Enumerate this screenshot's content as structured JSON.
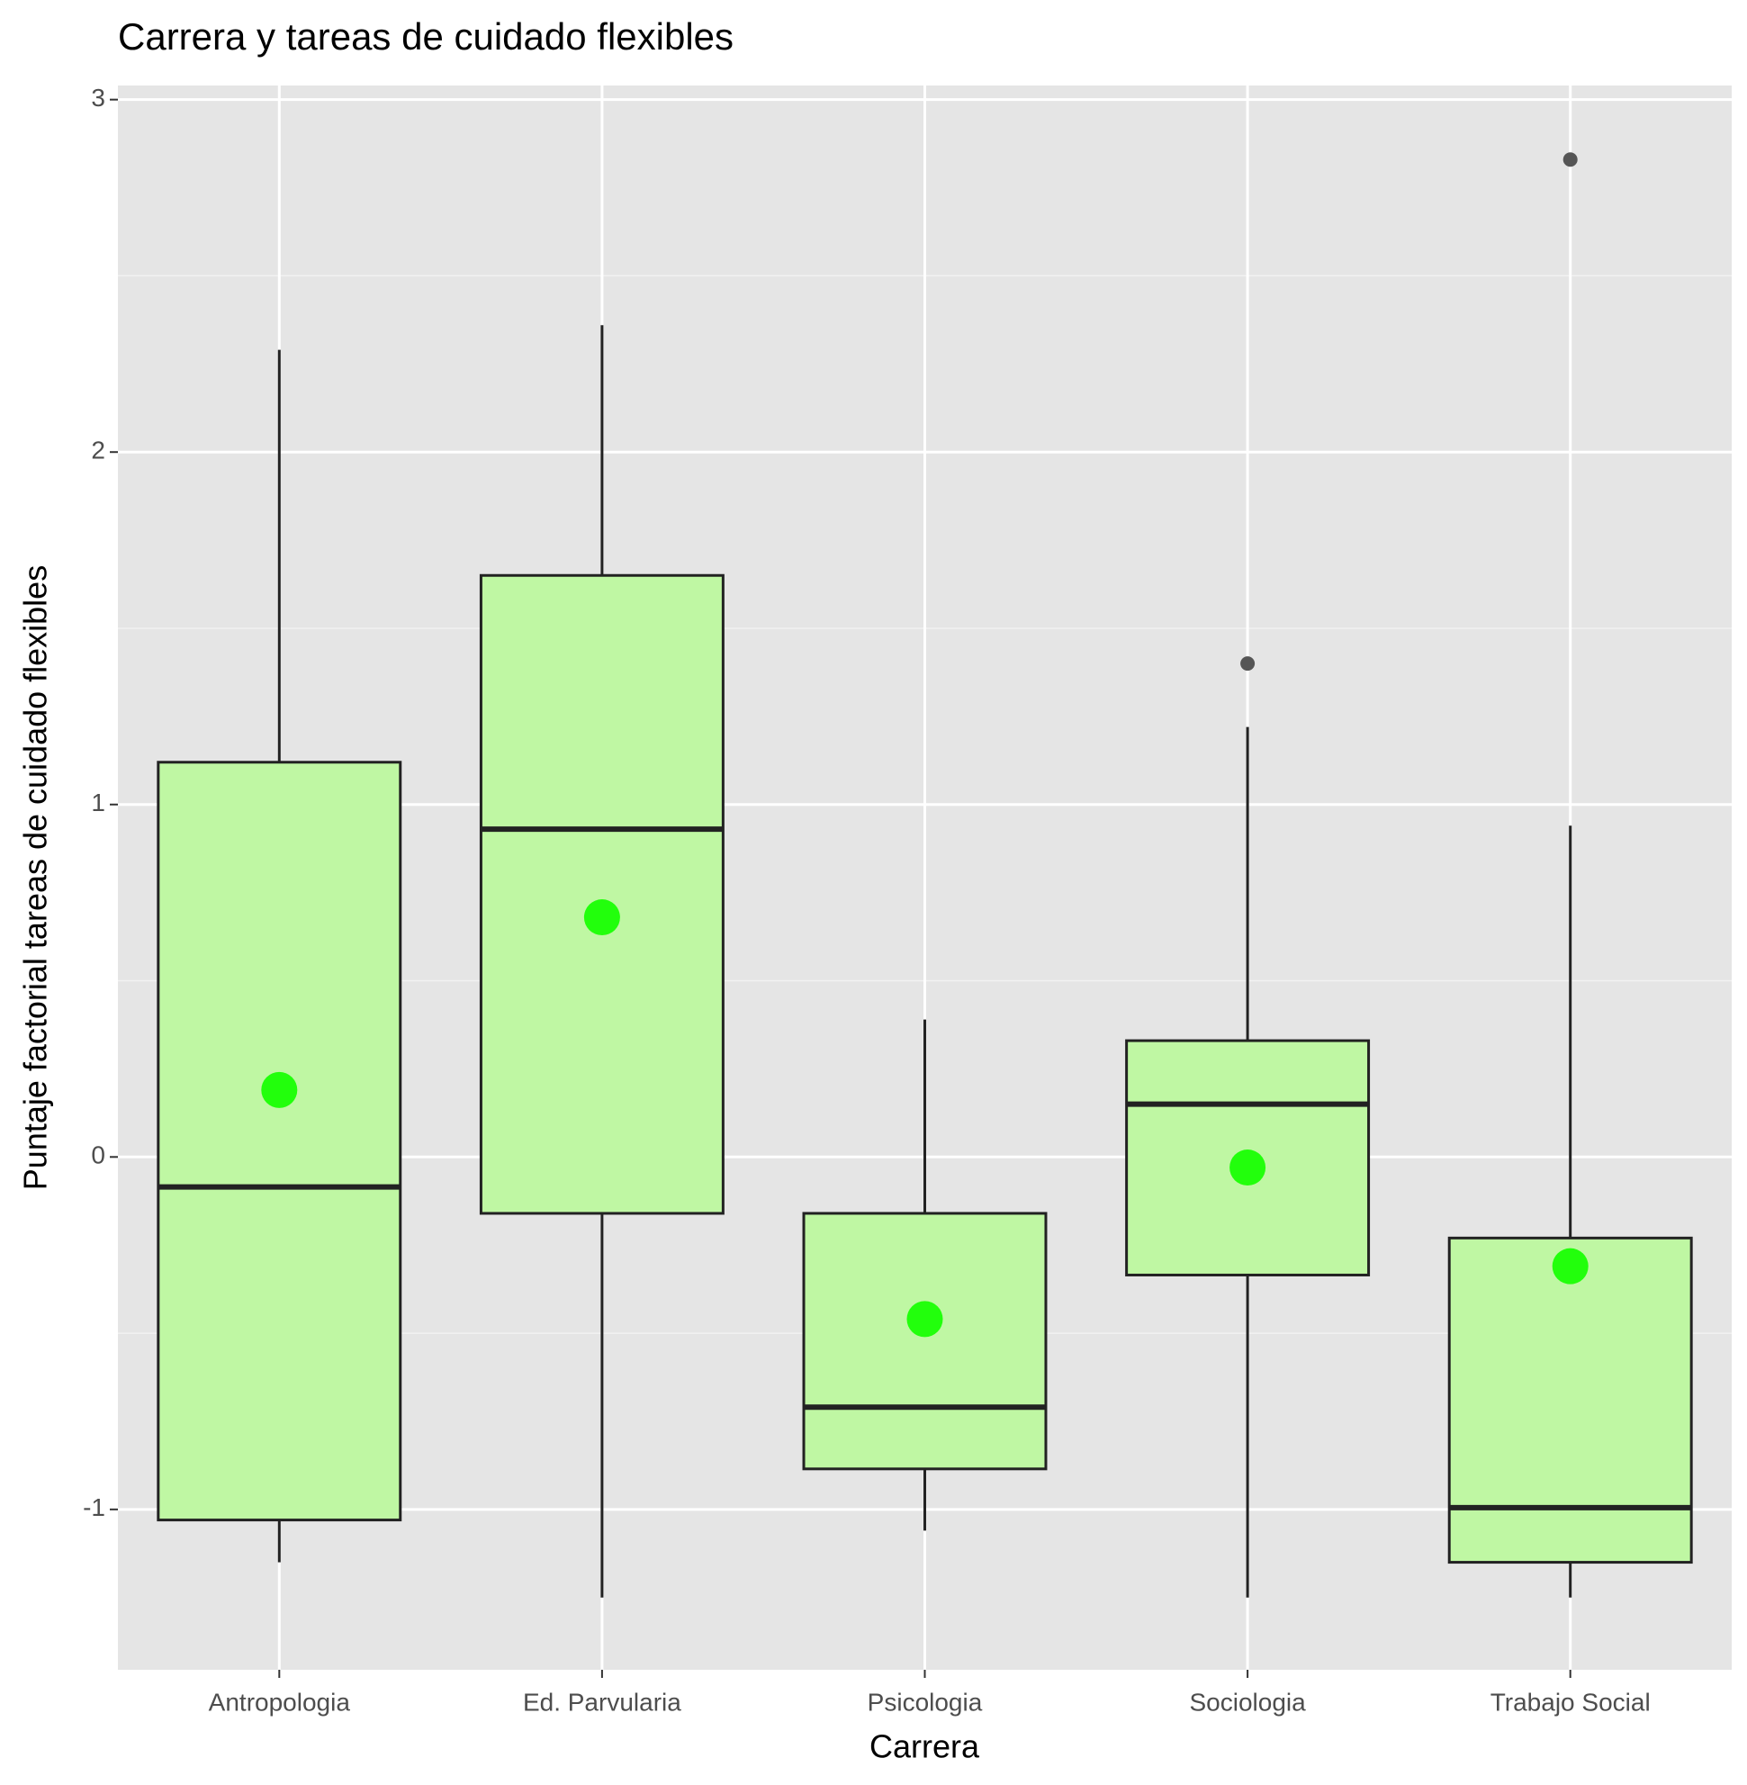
{
  "chart_data": {
    "type": "box",
    "title": "Carrera y tareas de cuidado flexibles",
    "x_label": "Carrera",
    "y_label": "Puntaje factorial tareas de cuidado flexibles",
    "categories": [
      "Antropologia",
      "Ed. Parvularia",
      "Psicologia",
      "Sociologia",
      "Trabajo Social"
    ],
    "whisker_low": [
      -1.15,
      -1.25,
      -1.06,
      -1.25,
      -1.25
    ],
    "q1": [
      -1.03,
      -0.16,
      -0.885,
      -0.335,
      -1.15
    ],
    "median": [
      -0.085,
      0.93,
      -0.71,
      0.15,
      -0.995
    ],
    "q3": [
      1.12,
      1.65,
      -0.16,
      0.33,
      -0.23
    ],
    "whisker_high": [
      2.29,
      2.36,
      0.39,
      1.22,
      0.94
    ],
    "mean": [
      0.19,
      0.68,
      -0.46,
      -0.03,
      -0.31
    ],
    "outliers": [
      [],
      [],
      [],
      [
        1.4
      ],
      [
        2.83
      ]
    ],
    "box_color": "#bff7a3",
    "line_color": "#222222",
    "mean_color": "#22ff0c",
    "outlier_color": "#555555",
    "ylim": [
      -1.455,
      3.04
    ],
    "yticks": [
      -1,
      0,
      1,
      2,
      3
    ],
    "grid": true
  }
}
